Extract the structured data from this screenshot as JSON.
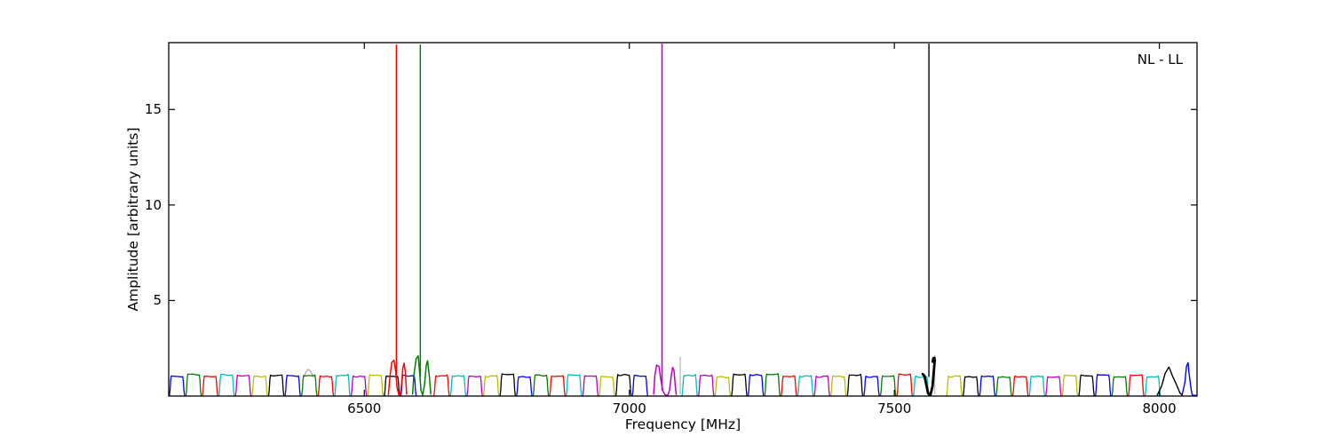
{
  "chart_data": {
    "type": "line",
    "title": "",
    "xlabel": "Frequency [MHz]",
    "ylabel": "Amplitude [arbitrary units]",
    "annotation": "NL - LL",
    "xlim": [
      6131,
      8071
    ],
    "ylim": [
      0,
      18.5
    ],
    "xticks": [
      6500,
      7000,
      7500,
      8000
    ],
    "yticks": [
      5,
      10,
      15
    ],
    "grid": false,
    "tick_direction": "in",
    "legend_position": "upper-right-inside",
    "frame_color": "#000000",
    "background_color": "#ffffff",
    "bands": {
      "description": "contiguous flat-topped subband bandpass humps along the baseline",
      "start_mhz": 6131,
      "width_mhz": 31.2,
      "count": 62,
      "amplitude": 1.05,
      "color_cycle": [
        "#0000ff",
        "#007f00",
        "#ff0000",
        "#00bfbf",
        "#bf00bf",
        "#bfbf00",
        "#000000"
      ],
      "skipped_band_indices": [
        15,
        29,
        30,
        46,
        60,
        61
      ]
    },
    "spikes": [
      {
        "freq_mhz": 6560.5,
        "color": "#ff0000",
        "top": 18.4,
        "base": 0.9,
        "line_width": 1.5,
        "ringing": [
          [
            -15.1,
            0.08
          ],
          [
            -12.2,
            1.0
          ],
          [
            -8.9,
            1.75
          ],
          [
            -4.7,
            1.88
          ],
          [
            -1.3,
            1.3
          ],
          [
            1.2,
            0.45
          ],
          [
            4.5,
            0.07
          ],
          [
            7.0,
            0.05
          ],
          [
            9.5,
            0.5
          ],
          [
            12.1,
            1.45
          ],
          [
            14.6,
            1.72
          ],
          [
            17.1,
            1.2
          ],
          [
            19.3,
            0.1
          ]
        ],
        "ringing_width": 1.5
      },
      {
        "freq_mhz": 6605.7,
        "color": "#007f00",
        "top": 18.4,
        "base": 1.0,
        "line_width": 1.5,
        "ringing": [
          [
            -14.7,
            0.1
          ],
          [
            -12.2,
            1.1
          ],
          [
            -8.0,
            1.95
          ],
          [
            -3.9,
            2.1
          ],
          [
            -1.3,
            1.2
          ],
          [
            1.2,
            0.3
          ],
          [
            4.5,
            0.06
          ],
          [
            7.9,
            0.6
          ],
          [
            11.2,
            1.6
          ],
          [
            13.7,
            1.85
          ],
          [
            17.1,
            1.0
          ],
          [
            19.6,
            0.1
          ]
        ],
        "ringing_width": 1.5
      },
      {
        "freq_mhz": 7061.7,
        "color": "#bf00bf",
        "top": 18.45,
        "base": 0.3,
        "line_width": 1.6,
        "ringing": [
          [
            -15.9,
            0.1
          ],
          [
            -13.4,
            1.1
          ],
          [
            -10.1,
            1.62
          ],
          [
            -5.9,
            1.55
          ],
          [
            -2.5,
            0.9
          ],
          [
            1.7,
            0.25
          ],
          [
            5.9,
            0.05
          ],
          [
            10.9,
            0.04
          ],
          [
            14.2,
            0.3
          ],
          [
            17.6,
            1.1
          ],
          [
            20.1,
            1.5
          ],
          [
            22.6,
            1.35
          ],
          [
            25.1,
            0.5
          ],
          [
            26.8,
            0.08
          ]
        ],
        "ringing_width": 1.5
      },
      {
        "freq_mhz": 7565.2,
        "color": "#000000",
        "top": 18.45,
        "base": 1.0,
        "line_width": 1.4,
        "ringing": [
          [
            -11.7,
            1.15
          ],
          [
            -8.4,
            1.05
          ],
          [
            -5.0,
            0.6
          ],
          [
            -1.7,
            0.15
          ],
          [
            2.5,
            0.02
          ],
          [
            6.7,
            0.5
          ],
          [
            9.2,
            1.3
          ],
          [
            10.9,
            1.85
          ],
          [
            10.4,
            2.0
          ],
          [
            8.4,
            1.98
          ],
          [
            7.0,
            1.8
          ]
        ],
        "ringing_width": 2.8
      }
    ],
    "extras": [
      {
        "type": "bump",
        "color": "#b4b4b4",
        "width": 1.4,
        "points": [
          [
            6386,
            1.02
          ],
          [
            6390,
            1.26
          ],
          [
            6394,
            1.4
          ],
          [
            6398,
            1.32
          ],
          [
            6402,
            1.12
          ],
          [
            6404,
            1.0
          ]
        ]
      },
      {
        "type": "vline",
        "freq_mhz": 7096,
        "color": "#bdbdbd",
        "base": 0.1,
        "top": 2.05,
        "width": 1.4
      },
      {
        "type": "vline",
        "freq_mhz": 7576,
        "color": "#bdbdbd",
        "base": 0.1,
        "top": 2.15,
        "width": 1.4
      },
      {
        "type": "edge_peak",
        "color": "#000000",
        "width": 1.4,
        "points": [
          [
            7996,
            0.05
          ],
          [
            8004,
            0.5
          ],
          [
            8011,
            1.2
          ],
          [
            8018,
            1.52
          ],
          [
            8024,
            1.1
          ],
          [
            8033,
            0.55
          ],
          [
            8039,
            0.15
          ],
          [
            8043,
            0.05
          ]
        ]
      },
      {
        "type": "edge_peak",
        "color": "#0000ff",
        "width": 1.4,
        "points": [
          [
            8043,
            0.08
          ],
          [
            8048,
            0.7
          ],
          [
            8051,
            1.55
          ],
          [
            8054,
            1.75
          ],
          [
            8056,
            1.2
          ],
          [
            8060,
            0.35
          ],
          [
            8062,
            0.05
          ],
          [
            8070,
            0.03
          ]
        ]
      }
    ]
  }
}
